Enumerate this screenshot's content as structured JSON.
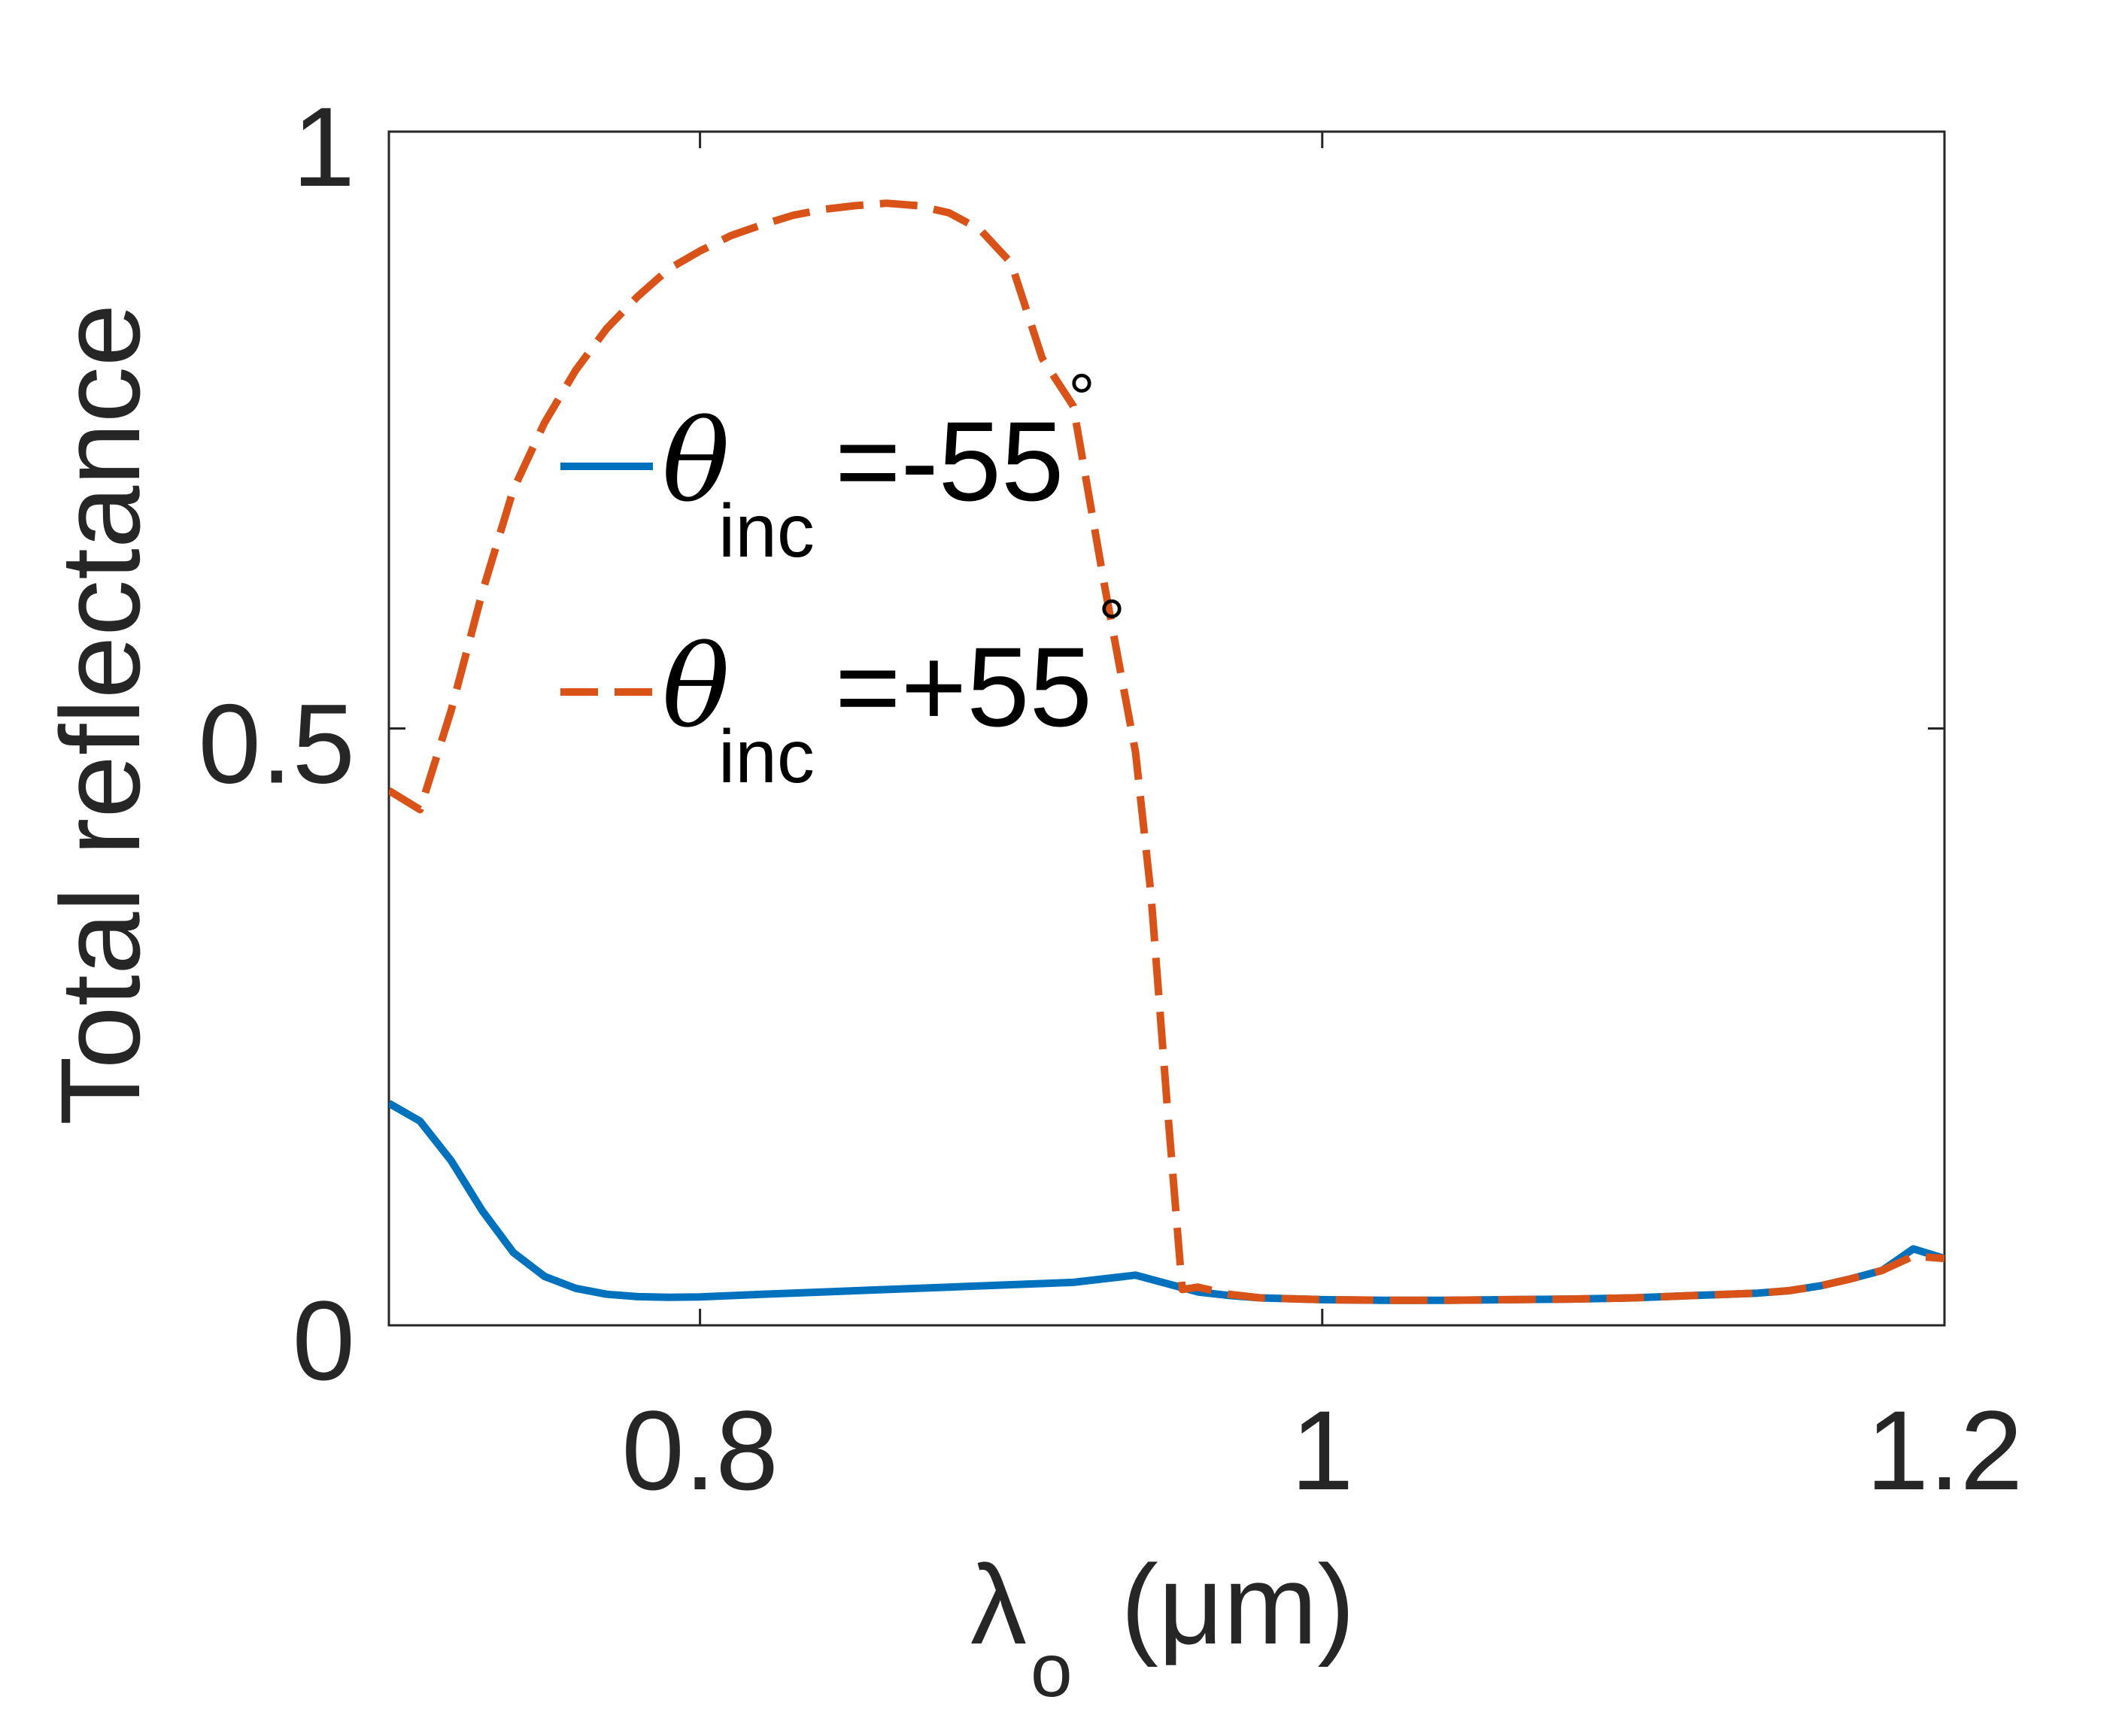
{
  "chart_data": {
    "type": "line",
    "xlabel_symbol": "λ",
    "xlabel_subscript": "o",
    "xlabel_unit": "(μm)",
    "ylabel": "Total reflectance",
    "xlim": [
      0.7,
      1.2
    ],
    "ylim": [
      0,
      1
    ],
    "xticks": [
      0.8,
      1.0,
      1.2
    ],
    "xtick_labels": [
      "0.8",
      "1",
      "1.2"
    ],
    "yticks": [
      0,
      0.5,
      1
    ],
    "ytick_labels": [
      "0",
      "0.5",
      "1"
    ],
    "grid": false,
    "box": true,
    "legend_position": "upper-center",
    "series": [
      {
        "legend_symbol": "θ",
        "legend_subscript": "inc",
        "legend_value": "=-55",
        "legend_degree": "°",
        "color": "#0072BD",
        "style": "solid",
        "x": [
          0.7,
          0.71,
          0.72,
          0.73,
          0.74,
          0.75,
          0.76,
          0.77,
          0.78,
          0.79,
          0.8,
          0.82,
          0.84,
          0.86,
          0.88,
          0.9,
          0.92,
          0.94,
          0.96,
          0.97,
          0.98,
          1.0,
          1.02,
          1.04,
          1.06,
          1.08,
          1.1,
          1.12,
          1.14,
          1.15,
          1.16,
          1.17,
          1.18,
          1.19,
          1.2
        ],
        "y": [
          0.186,
          0.171,
          0.138,
          0.096,
          0.061,
          0.041,
          0.031,
          0.026,
          0.024,
          0.0235,
          0.0238,
          0.026,
          0.028,
          0.03,
          0.032,
          0.034,
          0.036,
          0.042,
          0.028,
          0.025,
          0.023,
          0.0215,
          0.021,
          0.021,
          0.0215,
          0.022,
          0.023,
          0.025,
          0.027,
          0.029,
          0.033,
          0.039,
          0.046,
          0.064,
          0.056
        ]
      },
      {
        "legend_symbol": "θ",
        "legend_subscript": "inc",
        "legend_value": "=+55",
        "legend_degree": "°",
        "color": "#D95319",
        "style": "dashed",
        "x": [
          0.7,
          0.71,
          0.72,
          0.73,
          0.74,
          0.75,
          0.76,
          0.77,
          0.78,
          0.79,
          0.8,
          0.81,
          0.82,
          0.83,
          0.84,
          0.85,
          0.86,
          0.87,
          0.88,
          0.89,
          0.9,
          0.91,
          0.92,
          0.93,
          0.94,
          0.945,
          0.95,
          0.955,
          0.96,
          0.97,
          0.98,
          1.0,
          1.02,
          1.04,
          1.06,
          1.08,
          1.1,
          1.12,
          1.14,
          1.15,
          1.16,
          1.17,
          1.18,
          1.19,
          1.2
        ],
        "y": [
          0.448,
          0.432,
          0.515,
          0.614,
          0.7,
          0.756,
          0.8,
          0.835,
          0.862,
          0.885,
          0.9,
          0.913,
          0.922,
          0.93,
          0.935,
          0.938,
          0.94,
          0.938,
          0.932,
          0.918,
          0.89,
          0.81,
          0.77,
          0.62,
          0.48,
          0.36,
          0.19,
          0.03,
          0.032,
          0.026,
          0.023,
          0.0215,
          0.021,
          0.021,
          0.0215,
          0.022,
          0.023,
          0.025,
          0.027,
          0.029,
          0.033,
          0.039,
          0.046,
          0.058,
          0.056
        ]
      }
    ]
  }
}
